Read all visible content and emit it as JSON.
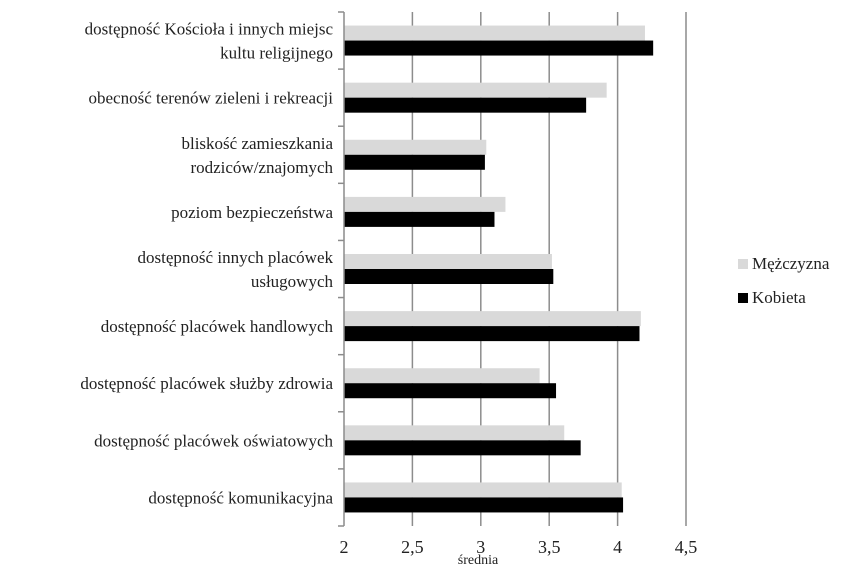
{
  "chart_data": {
    "type": "bar",
    "orientation": "horizontal",
    "categories": [
      [
        "dostępność Kościoła i innych miejsc",
        "kultu religijnego"
      ],
      [
        "obecność terenów zieleni i rekreacji"
      ],
      [
        "bliskość zamieszkania",
        "rodziców/znajomych"
      ],
      [
        "poziom bezpieczeństwa"
      ],
      [
        "dostępność innych placówek",
        "usługowych"
      ],
      [
        "dostępność placówek handlowych"
      ],
      [
        "dostępność placówek służby zdrowia"
      ],
      [
        "dostępność placówek oświatowych"
      ],
      [
        "dostępność komunikacyjna"
      ]
    ],
    "series": [
      {
        "name": "Mężczyzna",
        "color": "#d9d9d9",
        "values": [
          4.2,
          3.92,
          3.04,
          3.18,
          3.52,
          4.17,
          3.43,
          3.61,
          4.03
        ]
      },
      {
        "name": "Kobieta",
        "color": "#000000",
        "values": [
          4.26,
          3.77,
          3.03,
          3.1,
          3.53,
          4.16,
          3.55,
          3.73,
          4.04
        ]
      }
    ],
    "xlabel": "średnia",
    "xlim": [
      2,
      4.5
    ],
    "xticks": [
      "2",
      "2,5",
      "3",
      "3,5",
      "4",
      "4,5"
    ],
    "grid": true,
    "legend": "right"
  }
}
